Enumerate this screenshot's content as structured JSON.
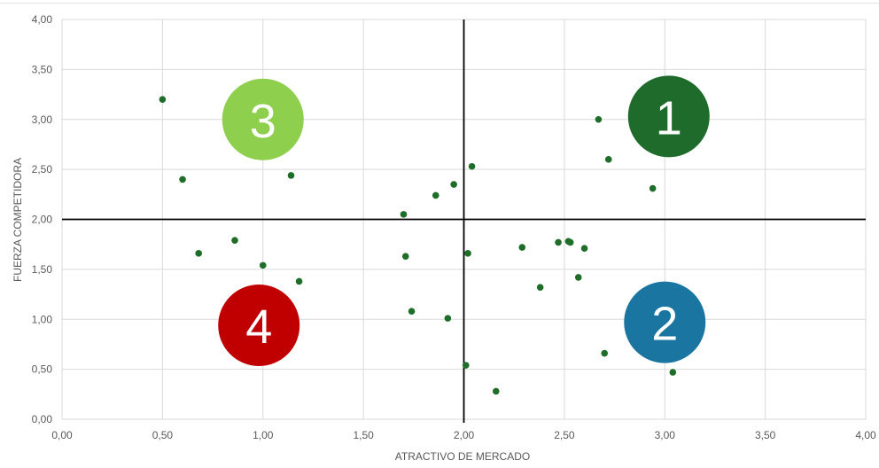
{
  "chart_data": {
    "type": "scatter",
    "xlabel": "ATRACTIVO DE MERCADO",
    "ylabel": "FUERZA COMPETIDORA",
    "xlim": [
      0,
      4
    ],
    "ylim": [
      0,
      4
    ],
    "x_ticks": [
      "0,00",
      "0,50",
      "1,00",
      "1,50",
      "2,00",
      "2,50",
      "3,00",
      "3,50",
      "4,00"
    ],
    "y_ticks": [
      "0,00",
      "0,50",
      "1,00",
      "1,50",
      "2,00",
      "2,50",
      "3,00",
      "3,50",
      "4,00"
    ],
    "grid": true,
    "divider_x": 2.0,
    "divider_y": 2.0,
    "point_color": "#1e6e2a",
    "points": [
      {
        "x": 0.5,
        "y": 3.2
      },
      {
        "x": 0.6,
        "y": 2.4
      },
      {
        "x": 0.68,
        "y": 1.66
      },
      {
        "x": 0.86,
        "y": 1.79
      },
      {
        "x": 1.0,
        "y": 1.54
      },
      {
        "x": 1.14,
        "y": 2.44
      },
      {
        "x": 1.18,
        "y": 1.38
      },
      {
        "x": 1.7,
        "y": 2.05
      },
      {
        "x": 1.71,
        "y": 1.63
      },
      {
        "x": 1.74,
        "y": 1.08
      },
      {
        "x": 1.86,
        "y": 2.24
      },
      {
        "x": 1.92,
        "y": 1.01
      },
      {
        "x": 1.95,
        "y": 2.35
      },
      {
        "x": 2.01,
        "y": 0.54
      },
      {
        "x": 2.02,
        "y": 1.66
      },
      {
        "x": 2.04,
        "y": 2.53
      },
      {
        "x": 2.16,
        "y": 0.28
      },
      {
        "x": 2.29,
        "y": 1.72
      },
      {
        "x": 2.38,
        "y": 1.32
      },
      {
        "x": 2.47,
        "y": 1.77
      },
      {
        "x": 2.52,
        "y": 1.78
      },
      {
        "x": 2.53,
        "y": 1.77
      },
      {
        "x": 2.57,
        "y": 1.42
      },
      {
        "x": 2.6,
        "y": 1.71
      },
      {
        "x": 2.67,
        "y": 3.0
      },
      {
        "x": 2.7,
        "y": 0.66
      },
      {
        "x": 2.72,
        "y": 2.6
      },
      {
        "x": 2.94,
        "y": 2.31
      },
      {
        "x": 3.04,
        "y": 0.47
      }
    ],
    "quadrant_badges": [
      {
        "label": "1",
        "x": 3.02,
        "y": 3.03,
        "color": "#1e6b2b"
      },
      {
        "label": "2",
        "x": 3.0,
        "y": 0.97,
        "color": "#1a76a0"
      },
      {
        "label": "3",
        "x": 1.0,
        "y": 3.0,
        "color": "#8fcf4e"
      },
      {
        "label": "4",
        "x": 0.98,
        "y": 0.94,
        "color": "#c00000"
      }
    ]
  }
}
